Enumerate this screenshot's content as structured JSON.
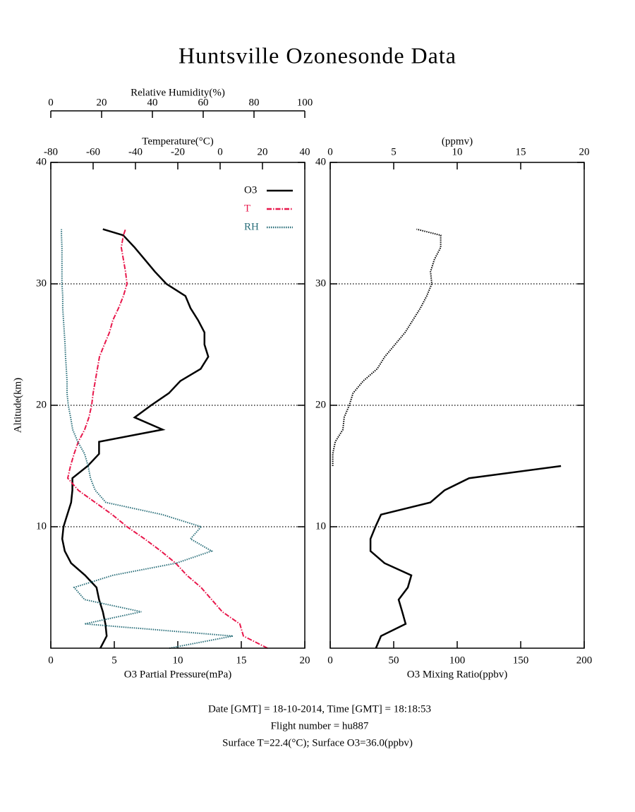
{
  "title": "Huntsville Ozonesonde Data",
  "footer": [
    "Date [GMT] = 18-10-2014,  Time [GMT] = 18:18:53",
    "Flight number = hu887",
    "Surface T=22.4(°C); Surface O3=36.0(ppbv)"
  ],
  "chart_data": [
    {
      "type": "line",
      "y_label": "Altitude(km)",
      "x_label": "O3 Partial Pressure(mPa)",
      "x2_label": "Temperature(°C)",
      "x3_label": "Relative Humidity(%)",
      "y": [
        0,
        1,
        2,
        3,
        4,
        5,
        6,
        7,
        8,
        9,
        10,
        11,
        12,
        13,
        14,
        15,
        16,
        17,
        18,
        19,
        20,
        21,
        22,
        23,
        24,
        25,
        26,
        27,
        28,
        29,
        30,
        31,
        32,
        33,
        34,
        34.5
      ],
      "ylim": [
        0,
        40
      ],
      "yticks": [
        10,
        20,
        30,
        40
      ],
      "xlim": [
        0,
        20
      ],
      "xticks": [
        0,
        5,
        10,
        15,
        20
      ],
      "x2lim": [
        -80,
        40
      ],
      "x2ticks": [
        -80,
        -60,
        -40,
        -20,
        0,
        20,
        40
      ],
      "x3lim": [
        0,
        100
      ],
      "x3ticks": [
        0,
        20,
        40,
        60,
        80,
        100
      ],
      "grid": true,
      "legend": "upper-right",
      "series": [
        {
          "name": "O3",
          "color": "#000000",
          "axis": "x",
          "line_style": "solid",
          "values": [
            3.9,
            4.4,
            4.3,
            4.1,
            3.8,
            3.6,
            2.7,
            1.6,
            1.1,
            0.9,
            1.0,
            1.3,
            1.6,
            1.7,
            1.7,
            2.9,
            3.8,
            3.8,
            8.8,
            6.6,
            7.9,
            9.3,
            10.2,
            11.8,
            12.4,
            12.1,
            12.1,
            11.6,
            11.0,
            10.6,
            9.1,
            8.2,
            7.4,
            6.6,
            5.7,
            4.1
          ]
        },
        {
          "name": "T",
          "color": "#e8174b",
          "axis": "x2",
          "line_style": "dashdot",
          "values": [
            22.4,
            11,
            9.3,
            1,
            -4,
            -9,
            -15.7,
            -21,
            -28,
            -35.7,
            -44,
            -51,
            -59,
            -67,
            -72,
            -70.7,
            -69,
            -67,
            -64,
            -62,
            -60.7,
            -60,
            -59,
            -58,
            -57,
            -54.7,
            -52.3,
            -50.7,
            -48,
            -45.7,
            -44,
            -44.7,
            -45.7,
            -46.7,
            -45.7,
            -44.7
          ]
        },
        {
          "name": "RH",
          "color": "#2a6f7a",
          "axis": "x3",
          "line_style": "dotted",
          "values": [
            46.7,
            71.7,
            13.3,
            35.6,
            13.3,
            9.2,
            24.4,
            49.4,
            63.3,
            55,
            59.2,
            43.9,
            21.7,
            17.5,
            15.6,
            14.7,
            13.3,
            10.6,
            8.6,
            7.8,
            6.9,
            6.4,
            6.4,
            6.1,
            5.8,
            5.6,
            5.3,
            5,
            4.7,
            4.7,
            4.4,
            4.4,
            4.4,
            4.4,
            4.2,
            4.2
          ]
        }
      ]
    },
    {
      "type": "line",
      "x_label": "O3 Mixing Ratio(ppbv)",
      "x2_label": "(ppmv)",
      "y": [
        0,
        1,
        2,
        3,
        4,
        5,
        6,
        7,
        8,
        9,
        10,
        11,
        12,
        13,
        14,
        15,
        16,
        17,
        18,
        19,
        20,
        21,
        22,
        23,
        24,
        25,
        26,
        27,
        28,
        29,
        30,
        31,
        32,
        33,
        34,
        34.5
      ],
      "ylim": [
        0,
        40
      ],
      "yticks": [
        10,
        20,
        30,
        40
      ],
      "xlim": [
        0,
        200
      ],
      "xticks": [
        0,
        50,
        100,
        150,
        200
      ],
      "x2lim": [
        0,
        20
      ],
      "x2ticks": [
        0,
        5,
        10,
        15,
        20
      ],
      "grid": true,
      "series": [
        {
          "color": "#000000",
          "axis": "x",
          "line_style": "solid",
          "values": [
            36,
            40,
            59.4,
            56.7,
            53.9,
            61.1,
            63.9,
            42.8,
            31.7,
            31.7,
            35.6,
            40,
            78.9,
            90,
            109.4,
            181.7,
            null,
            null,
            null,
            null,
            null,
            null,
            null,
            null,
            null,
            null,
            null,
            null,
            null,
            null,
            null,
            null,
            null,
            null,
            null,
            null
          ]
        },
        {
          "color": "#000000",
          "axis": "x2",
          "line_style": "dotted",
          "values": [
            null,
            null,
            null,
            null,
            null,
            null,
            null,
            null,
            null,
            null,
            null,
            null,
            null,
            null,
            null,
            0.2,
            0.2,
            0.4,
            1.0,
            1.1,
            1.5,
            1.8,
            2.6,
            3.7,
            4.3,
            5.1,
            5.9,
            6.5,
            7.1,
            7.6,
            8.0,
            7.9,
            8.2,
            8.7,
            8.7,
            6.8
          ]
        }
      ]
    }
  ]
}
